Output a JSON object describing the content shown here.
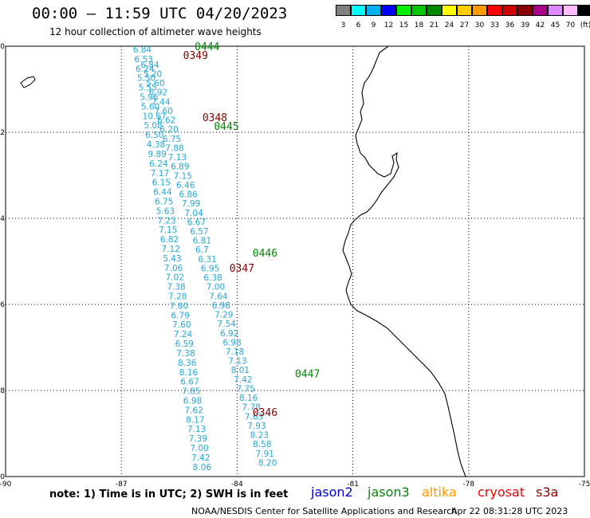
{
  "header": {
    "title": "00:00 — 11:59 UTC 04/20/2023",
    "subtitle": "12 hour collection of altimeter wave heights"
  },
  "colorbar": {
    "labels": [
      "3",
      "6",
      "9",
      "12",
      "15",
      "18",
      "21",
      "24",
      "27",
      "30",
      "33",
      "36",
      "39",
      "42",
      "45",
      "70",
      "(ft)"
    ],
    "colors": [
      "#808080",
      "#00ffff",
      "#00b0f0",
      "#0000ff",
      "#00ee00",
      "#00c800",
      "#008800",
      "#ffff00",
      "#ffcc00",
      "#ff9900",
      "#ff0000",
      "#cc0000",
      "#880000",
      "#aa0088",
      "#dd88ff",
      "#ffbbff",
      "#000000"
    ]
  },
  "map": {
    "x_ticks": [
      "-90",
      "-87",
      "-84",
      "-81",
      "-78",
      "-75"
    ],
    "y_ticks": [
      "0",
      "-2",
      "-4",
      "-6",
      "-8",
      "-10"
    ],
    "passes": [
      {
        "label": "0444",
        "color": "#008800",
        "lon": -85.1,
        "lat": 0.0
      },
      {
        "label": "0349",
        "color": "#880000",
        "lon": -85.4,
        "lat": -0.2
      },
      {
        "label": "0348",
        "color": "#880000",
        "lon": -84.9,
        "lat": -1.65
      },
      {
        "label": "0445",
        "color": "#008800",
        "lon": -84.6,
        "lat": -1.85
      },
      {
        "label": "0446",
        "color": "#008800",
        "lon": -83.6,
        "lat": -4.8
      },
      {
        "label": "0347",
        "color": "#880000",
        "lon": -84.2,
        "lat": -5.15
      },
      {
        "label": "0447",
        "color": "#008800",
        "lon": -82.5,
        "lat": -7.6
      },
      {
        "label": "0346",
        "color": "#880000",
        "lon": -83.6,
        "lat": -8.5
      }
    ],
    "track_a": {
      "color": "#22aad8",
      "start": {
        "lon": -86.7,
        "lat": 0.0
      },
      "end": {
        "lon": -85.15,
        "lat": -9.7
      },
      "values": [
        "6.84",
        "6.53",
        "6.24",
        "5.50",
        "5.55",
        "5.96",
        "5.60",
        "10.67",
        "5.08",
        "6.50",
        "4.38",
        "9.89",
        "6.24",
        "7.17",
        "6.15",
        "6.44",
        "6.75",
        "5.63",
        "7.23",
        "7.15",
        "6.82",
        "7.12",
        "5.43",
        "7.06",
        "7.02",
        "7.38",
        "7.28",
        "7.80",
        "6.79",
        "7.60",
        "7.24",
        "6.59",
        "7.38",
        "8.36",
        "8.16",
        "6.67",
        "7.85",
        "6.98",
        "7.62",
        "8.17",
        "7.13",
        "7.39",
        "7.00",
        "7.42",
        "8.06"
      ]
    },
    "track_b": {
      "color": "#22aad8",
      "start": {
        "lon": -86.5,
        "lat": -0.35
      },
      "end": {
        "lon": -83.45,
        "lat": -9.6
      },
      "values": [
        "6.84",
        "5.20",
        "5.60",
        "6.92",
        "7.44",
        "7.60",
        "6.62",
        "6.20",
        "6.75",
        "7.88",
        "7.13",
        "6.89",
        "7.15",
        "6.46",
        "6.86",
        "7.99",
        "7.04",
        "6.67",
        "6.57",
        "6.81",
        "6.7",
        "6.31",
        "6.95",
        "6.38",
        "7.00",
        "7.64",
        "6.98",
        "7.29",
        "7.54",
        "6.92",
        "6.98",
        "7.18",
        "7.13",
        "8.01",
        "7.42",
        "7.75",
        "8.16",
        "7.78",
        "7.63",
        "7.93",
        "8.23",
        "8.58",
        "7.91",
        "8.20"
      ]
    }
  },
  "footer": {
    "note": "note: 1) Time is in UTC; 2) SWH is in feet",
    "satellites": [
      {
        "name": "jason2",
        "color": "#0000dd"
      },
      {
        "name": "jason3",
        "color": "#008800"
      },
      {
        "name": "altika",
        "color": "#ff9900"
      },
      {
        "name": "cryosat",
        "color": "#ee0000"
      },
      {
        "name": "s3a",
        "color": "#880000"
      }
    ],
    "credit": "NOAA/NESDIS Center for Satellite Applications and Research",
    "timestamp": "Apr 22 08:31:28 UTC 2023"
  }
}
